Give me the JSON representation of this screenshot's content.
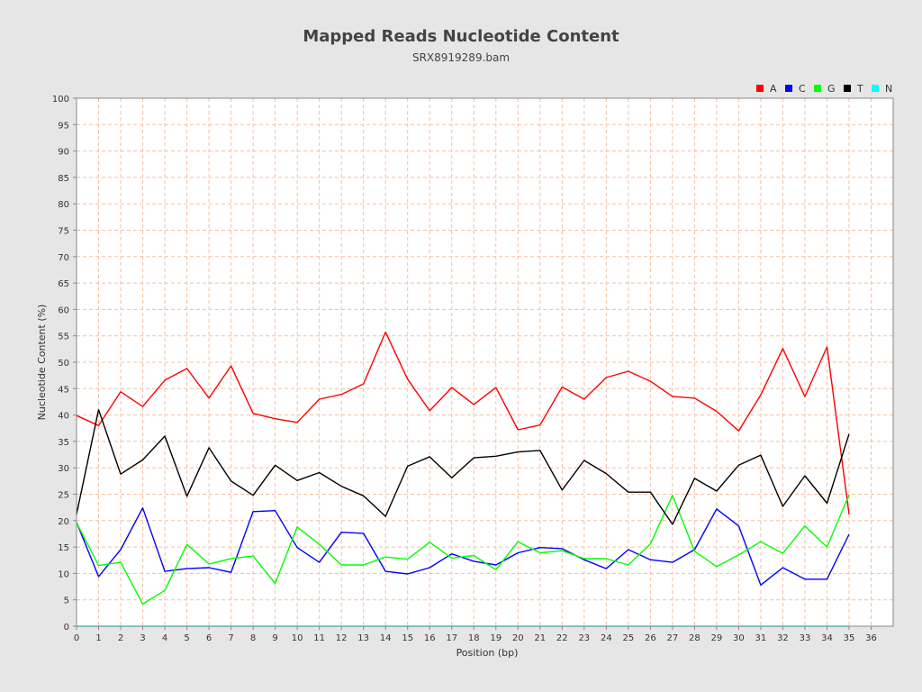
{
  "chart_data": {
    "type": "line",
    "title": "Mapped Reads Nucleotide Content",
    "subtitle": "SRX8919289.bam",
    "xlabel": "Position (bp)",
    "ylabel": "Nucleotide Content (%)",
    "xlim": [
      0,
      37
    ],
    "ylim": [
      0,
      100
    ],
    "x_ticks": [
      0,
      1,
      2,
      3,
      4,
      5,
      6,
      7,
      8,
      9,
      10,
      11,
      12,
      13,
      14,
      15,
      16,
      17,
      18,
      19,
      20,
      21,
      22,
      23,
      24,
      25,
      26,
      27,
      28,
      29,
      30,
      31,
      32,
      33,
      34,
      35,
      36
    ],
    "y_ticks": [
      0,
      5,
      10,
      15,
      20,
      25,
      30,
      35,
      40,
      45,
      50,
      55,
      60,
      65,
      70,
      75,
      80,
      85,
      90,
      95,
      100
    ],
    "grid": true,
    "legend_position": "top-right",
    "x": [
      0,
      1,
      2,
      3,
      4,
      5,
      6,
      7,
      8,
      9,
      10,
      11,
      12,
      13,
      14,
      15,
      16,
      17,
      18,
      19,
      20,
      21,
      22,
      23,
      24,
      25,
      26,
      27,
      28,
      29,
      30,
      31,
      32,
      33,
      34,
      35
    ],
    "series": [
      {
        "name": "A",
        "color": "#ff0000",
        "values": [
          39.9,
          38.0,
          44.4,
          41.6,
          46.6,
          48.8,
          43.2,
          49.3,
          40.3,
          39.3,
          38.6,
          43.0,
          43.9,
          45.9,
          55.7,
          46.8,
          40.8,
          45.2,
          42.0,
          45.2,
          37.2,
          38.1,
          45.3,
          43.0,
          47.1,
          48.3,
          46.4,
          43.5,
          43.2,
          40.7,
          37.0,
          43.8,
          52.6,
          43.5,
          52.9,
          21.2
        ]
      },
      {
        "name": "C",
        "color": "#0000ff",
        "values": [
          19.7,
          9.4,
          14.5,
          22.4,
          10.4,
          10.9,
          11.1,
          10.2,
          21.7,
          21.9,
          14.9,
          12.1,
          17.8,
          17.6,
          10.4,
          9.9,
          11.1,
          13.7,
          12.3,
          11.6,
          13.9,
          14.9,
          14.7,
          12.6,
          10.9,
          14.5,
          12.6,
          12.1,
          14.5,
          22.2,
          19.0,
          7.8,
          11.1,
          8.9,
          8.9,
          17.4
        ]
      },
      {
        "name": "G",
        "color": "#00ff00",
        "values": [
          19.6,
          11.5,
          12.1,
          4.2,
          6.8,
          15.5,
          11.8,
          12.8,
          13.3,
          8.1,
          18.8,
          15.5,
          11.6,
          11.6,
          13.1,
          12.7,
          15.9,
          12.9,
          13.4,
          10.7,
          16.0,
          13.9,
          14.3,
          12.8,
          12.8,
          11.6,
          15.6,
          24.8,
          14.2,
          11.3,
          13.5,
          16.0,
          13.8,
          19.0,
          15.0,
          24.9
        ]
      },
      {
        "name": "T",
        "color": "#000000",
        "values": [
          21.2,
          41.0,
          28.8,
          31.5,
          36.0,
          24.6,
          33.8,
          27.5,
          24.8,
          30.5,
          27.6,
          29.1,
          26.5,
          24.7,
          20.8,
          30.3,
          32.1,
          28.1,
          31.9,
          32.2,
          33.0,
          33.3,
          25.8,
          31.4,
          28.9,
          25.4,
          25.4,
          19.3,
          28.0,
          25.6,
          30.5,
          32.4,
          22.7,
          28.5,
          23.3,
          36.4
        ]
      },
      {
        "name": "N",
        "color": "#00ffff",
        "values": [
          0,
          0,
          0,
          0,
          0,
          0,
          0,
          0,
          0,
          0,
          0,
          0,
          0,
          0,
          0,
          0,
          0,
          0,
          0,
          0,
          0,
          0,
          0,
          0,
          0,
          0,
          0,
          0,
          0,
          0,
          0,
          0,
          0,
          0,
          0,
          0
        ]
      }
    ]
  }
}
